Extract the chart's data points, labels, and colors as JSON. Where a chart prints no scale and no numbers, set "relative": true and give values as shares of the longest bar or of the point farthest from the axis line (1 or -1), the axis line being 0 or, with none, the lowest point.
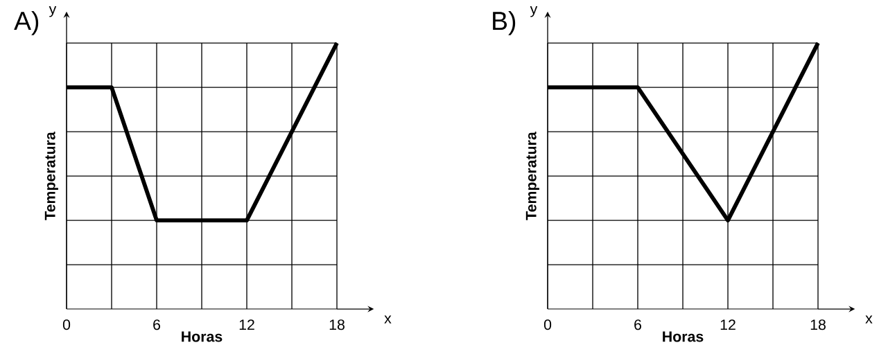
{
  "chart_data": [
    {
      "type": "line",
      "title": "A)",
      "xlabel": "Horas",
      "ylabel": "Temperatura",
      "annotations": [
        "x",
        "y"
      ],
      "relative": true,
      "x": [
        0,
        3,
        6,
        12,
        18
      ],
      "series": [
        {
          "color": "#000000",
          "values": [
            0.8333,
            0.8333,
            0.3333,
            0.3333,
            1
          ]
        }
      ],
      "xlim": [
        0,
        18
      ],
      "xticks": [
        0,
        6,
        12,
        18
      ],
      "grid": true,
      "tick_labels": "x"
    },
    {
      "type": "line",
      "title": "B)",
      "xlabel": "Horas",
      "ylabel": "Temperatura",
      "annotations": [
        "x",
        "y"
      ],
      "relative": true,
      "x": [
        0,
        6,
        12,
        18
      ],
      "series": [
        {
          "color": "#000000",
          "values": [
            0.8333,
            0.8333,
            0.3333,
            1
          ]
        }
      ],
      "xlim": [
        0,
        18
      ],
      "xticks": [
        0,
        6,
        12,
        18
      ],
      "grid": true,
      "tick_labels": "x"
    }
  ]
}
